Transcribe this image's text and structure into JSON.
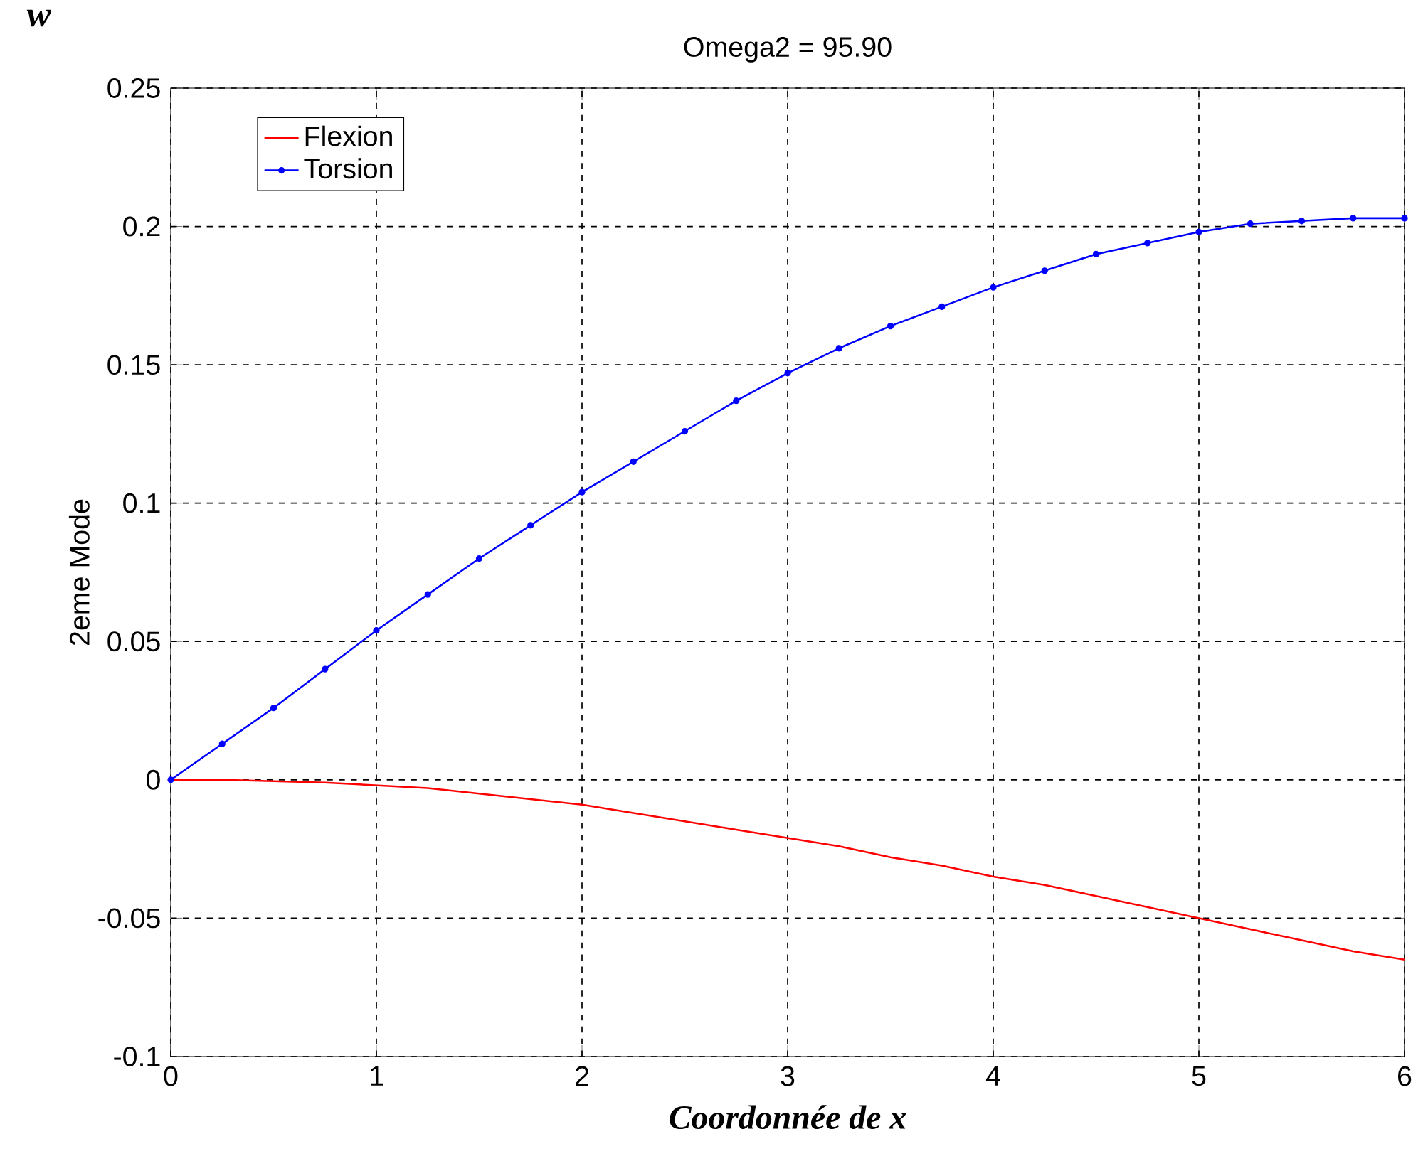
{
  "chart_data": {
    "type": "line",
    "title": "Omega2 = 95.90",
    "xlabel": "Coordonnée de x",
    "ylabel": "2eme Mode",
    "annotations": [
      "w"
    ],
    "x": [
      0,
      0.25,
      0.5,
      0.75,
      1,
      1.25,
      1.5,
      1.75,
      2,
      2.25,
      2.5,
      2.75,
      3,
      3.25,
      3.5,
      3.75,
      4,
      4.25,
      4.5,
      4.75,
      5,
      5.25,
      5.5,
      5.75,
      6
    ],
    "series": [
      {
        "name": "Flexion",
        "color": "#ff0000",
        "marker": "none",
        "values": [
          0,
          0,
          -0.0005,
          -0.001,
          -0.002,
          -0.003,
          -0.005,
          -0.007,
          -0.009,
          -0.012,
          -0.015,
          -0.018,
          -0.021,
          -0.024,
          -0.028,
          -0.031,
          -0.035,
          -0.038,
          -0.042,
          -0.046,
          -0.05,
          -0.054,
          -0.058,
          -0.062,
          -0.065
        ]
      },
      {
        "name": "Torsion",
        "color": "#0000ff",
        "marker": "circle",
        "values": [
          0,
          0.013,
          0.026,
          0.04,
          0.054,
          0.067,
          0.08,
          0.092,
          0.104,
          0.115,
          0.126,
          0.137,
          0.147,
          0.156,
          0.164,
          0.171,
          0.178,
          0.184,
          0.19,
          0.194,
          0.198,
          0.201,
          0.202,
          0.203,
          0.203
        ]
      }
    ],
    "xlim": [
      0,
      6
    ],
    "ylim": [
      -0.1,
      0.25
    ],
    "xticks": [
      0,
      1,
      2,
      3,
      4,
      5,
      6
    ],
    "yticks": [
      -0.1,
      -0.05,
      0,
      0.05,
      0.1,
      0.15,
      0.2,
      0.25
    ],
    "grid": true,
    "legend": "top left"
  }
}
